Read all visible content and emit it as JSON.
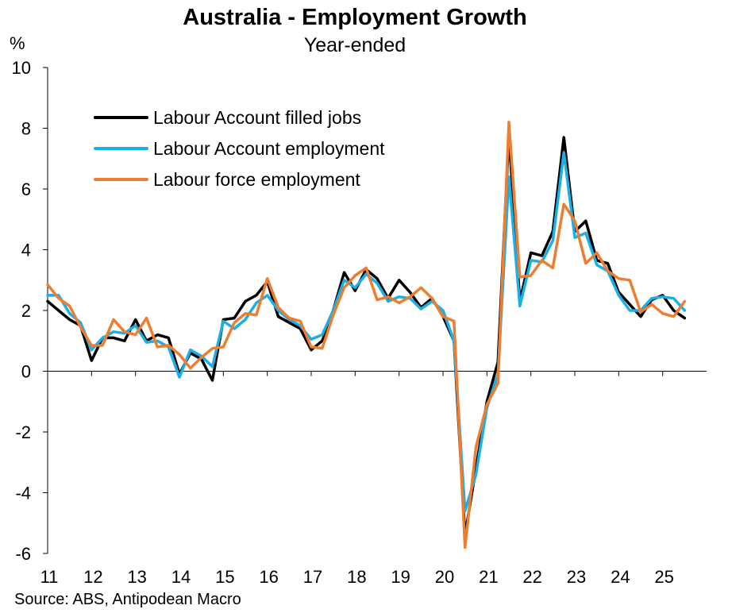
{
  "chart_data": {
    "type": "line",
    "title": "Australia - Employment Growth",
    "subtitle": "Year-ended",
    "ylabel": "%",
    "source": "Source: ABS, Antipodean Macro",
    "ylim": [
      -6,
      10
    ],
    "yticks": [
      "10",
      "8",
      "6",
      "4",
      "2",
      "0",
      "-2",
      "-4",
      "-6"
    ],
    "xlim": [
      2011.0,
      2026.0
    ],
    "xticks": [
      "11",
      "12",
      "13",
      "14",
      "15",
      "16",
      "17",
      "18",
      "19",
      "20",
      "21",
      "22",
      "23",
      "24",
      "25"
    ],
    "grid": false,
    "legend_position": "top-left",
    "series": [
      {
        "name": "Labour Account filled jobs",
        "color": "#000000",
        "points": [
          [
            2011.0,
            2.3
          ],
          [
            2011.25,
            2.0
          ],
          [
            2011.5,
            1.7
          ],
          [
            2011.75,
            1.5
          ],
          [
            2012.0,
            0.35
          ],
          [
            2012.25,
            1.1
          ],
          [
            2012.5,
            1.1
          ],
          [
            2012.75,
            1.0
          ],
          [
            2013.0,
            1.7
          ],
          [
            2013.25,
            1.0
          ],
          [
            2013.5,
            1.2
          ],
          [
            2013.75,
            1.1
          ],
          [
            2014.0,
            -0.1
          ],
          [
            2014.25,
            0.6
          ],
          [
            2014.5,
            0.4
          ],
          [
            2014.75,
            -0.3
          ],
          [
            2015.0,
            1.7
          ],
          [
            2015.25,
            1.75
          ],
          [
            2015.5,
            2.3
          ],
          [
            2015.75,
            2.5
          ],
          [
            2016.0,
            2.95
          ],
          [
            2016.25,
            1.8
          ],
          [
            2016.5,
            1.6
          ],
          [
            2016.75,
            1.4
          ],
          [
            2017.0,
            0.7
          ],
          [
            2017.25,
            1.0
          ],
          [
            2017.5,
            2.0
          ],
          [
            2017.75,
            3.25
          ],
          [
            2018.0,
            2.65
          ],
          [
            2018.25,
            3.35
          ],
          [
            2018.5,
            3.05
          ],
          [
            2018.75,
            2.4
          ],
          [
            2019.0,
            3.0
          ],
          [
            2019.25,
            2.6
          ],
          [
            2019.5,
            2.1
          ],
          [
            2019.75,
            2.4
          ],
          [
            2020.0,
            1.8
          ],
          [
            2020.25,
            1.0
          ],
          [
            2020.5,
            -5.4
          ],
          [
            2020.75,
            -3.2
          ],
          [
            2021.0,
            -1.0
          ],
          [
            2021.25,
            0.3
          ],
          [
            2021.5,
            7.8
          ],
          [
            2021.75,
            2.3
          ],
          [
            2022.0,
            3.9
          ],
          [
            2022.25,
            3.8
          ],
          [
            2022.5,
            4.6
          ],
          [
            2022.75,
            7.7
          ],
          [
            2023.0,
            4.6
          ],
          [
            2023.25,
            4.95
          ],
          [
            2023.5,
            3.65
          ],
          [
            2023.75,
            3.55
          ],
          [
            2024.0,
            2.6
          ],
          [
            2024.25,
            2.2
          ],
          [
            2024.5,
            1.8
          ],
          [
            2024.75,
            2.35
          ],
          [
            2025.0,
            2.5
          ],
          [
            2025.25,
            2.0
          ],
          [
            2025.5,
            1.75
          ]
        ]
      },
      {
        "name": "Labour Account employment",
        "color": "#1AAFE6",
        "points": [
          [
            2011.0,
            2.5
          ],
          [
            2011.25,
            2.5
          ],
          [
            2011.5,
            1.9
          ],
          [
            2011.75,
            1.6
          ],
          [
            2012.0,
            0.7
          ],
          [
            2012.25,
            1.1
          ],
          [
            2012.5,
            1.3
          ],
          [
            2012.75,
            1.25
          ],
          [
            2013.0,
            1.5
          ],
          [
            2013.25,
            0.95
          ],
          [
            2013.5,
            1.0
          ],
          [
            2013.75,
            0.8
          ],
          [
            2014.0,
            -0.2
          ],
          [
            2014.25,
            0.7
          ],
          [
            2014.5,
            0.5
          ],
          [
            2014.75,
            0.15
          ],
          [
            2015.0,
            1.65
          ],
          [
            2015.25,
            1.4
          ],
          [
            2015.5,
            1.7
          ],
          [
            2015.75,
            2.25
          ],
          [
            2016.0,
            2.5
          ],
          [
            2016.25,
            2.0
          ],
          [
            2016.5,
            1.7
          ],
          [
            2016.75,
            1.5
          ],
          [
            2017.0,
            1.05
          ],
          [
            2017.25,
            1.2
          ],
          [
            2017.5,
            2.0
          ],
          [
            2017.75,
            3.0
          ],
          [
            2018.0,
            2.75
          ],
          [
            2018.25,
            3.2
          ],
          [
            2018.5,
            2.9
          ],
          [
            2018.75,
            2.3
          ],
          [
            2019.0,
            2.45
          ],
          [
            2019.25,
            2.4
          ],
          [
            2019.5,
            2.05
          ],
          [
            2019.75,
            2.3
          ],
          [
            2020.0,
            2.0
          ],
          [
            2020.25,
            1.0
          ],
          [
            2020.5,
            -4.6
          ],
          [
            2020.75,
            -3.4
          ],
          [
            2021.0,
            -1.2
          ],
          [
            2021.25,
            -0.1
          ],
          [
            2021.5,
            6.4
          ],
          [
            2021.75,
            2.15
          ],
          [
            2022.0,
            3.65
          ],
          [
            2022.25,
            3.6
          ],
          [
            2022.5,
            4.3
          ],
          [
            2022.75,
            7.2
          ],
          [
            2023.0,
            4.4
          ],
          [
            2023.25,
            4.55
          ],
          [
            2023.5,
            3.5
          ],
          [
            2023.75,
            3.3
          ],
          [
            2024.0,
            2.5
          ],
          [
            2024.25,
            2.0
          ],
          [
            2024.5,
            2.0
          ],
          [
            2024.75,
            2.4
          ],
          [
            2025.0,
            2.45
          ],
          [
            2025.25,
            2.4
          ],
          [
            2025.5,
            2.0
          ]
        ]
      },
      {
        "name": "Labour force employment",
        "color": "#ED7D31",
        "points": [
          [
            2011.0,
            2.85
          ],
          [
            2011.25,
            2.4
          ],
          [
            2011.5,
            2.15
          ],
          [
            2011.75,
            1.45
          ],
          [
            2012.0,
            0.85
          ],
          [
            2012.25,
            0.85
          ],
          [
            2012.5,
            1.7
          ],
          [
            2012.75,
            1.3
          ],
          [
            2013.0,
            1.2
          ],
          [
            2013.25,
            1.75
          ],
          [
            2013.5,
            0.8
          ],
          [
            2013.75,
            0.85
          ],
          [
            2014.0,
            0.55
          ],
          [
            2014.25,
            0.1
          ],
          [
            2014.5,
            0.45
          ],
          [
            2014.75,
            0.75
          ],
          [
            2015.0,
            0.8
          ],
          [
            2015.25,
            1.6
          ],
          [
            2015.5,
            1.9
          ],
          [
            2015.75,
            1.85
          ],
          [
            2016.0,
            3.05
          ],
          [
            2016.25,
            2.1
          ],
          [
            2016.5,
            1.75
          ],
          [
            2016.75,
            1.65
          ],
          [
            2017.0,
            0.8
          ],
          [
            2017.25,
            0.75
          ],
          [
            2017.5,
            1.85
          ],
          [
            2017.75,
            2.75
          ],
          [
            2018.0,
            3.15
          ],
          [
            2018.25,
            3.4
          ],
          [
            2018.5,
            2.35
          ],
          [
            2018.75,
            2.45
          ],
          [
            2019.0,
            2.25
          ],
          [
            2019.25,
            2.45
          ],
          [
            2019.5,
            2.75
          ],
          [
            2019.75,
            2.4
          ],
          [
            2020.0,
            1.8
          ],
          [
            2020.25,
            1.65
          ],
          [
            2020.5,
            -5.8
          ],
          [
            2020.75,
            -2.5
          ],
          [
            2021.0,
            -1.1
          ],
          [
            2021.25,
            -0.4
          ],
          [
            2021.5,
            8.2
          ],
          [
            2021.75,
            3.1
          ],
          [
            2022.0,
            3.15
          ],
          [
            2022.25,
            3.65
          ],
          [
            2022.5,
            3.4
          ],
          [
            2022.75,
            5.5
          ],
          [
            2023.0,
            4.95
          ],
          [
            2023.25,
            3.55
          ],
          [
            2023.5,
            3.9
          ],
          [
            2023.75,
            3.3
          ],
          [
            2024.0,
            3.05
          ],
          [
            2024.25,
            3.0
          ],
          [
            2024.5,
            1.95
          ],
          [
            2024.75,
            2.2
          ],
          [
            2025.0,
            1.9
          ],
          [
            2025.25,
            1.8
          ],
          [
            2025.5,
            2.3
          ]
        ]
      }
    ]
  }
}
